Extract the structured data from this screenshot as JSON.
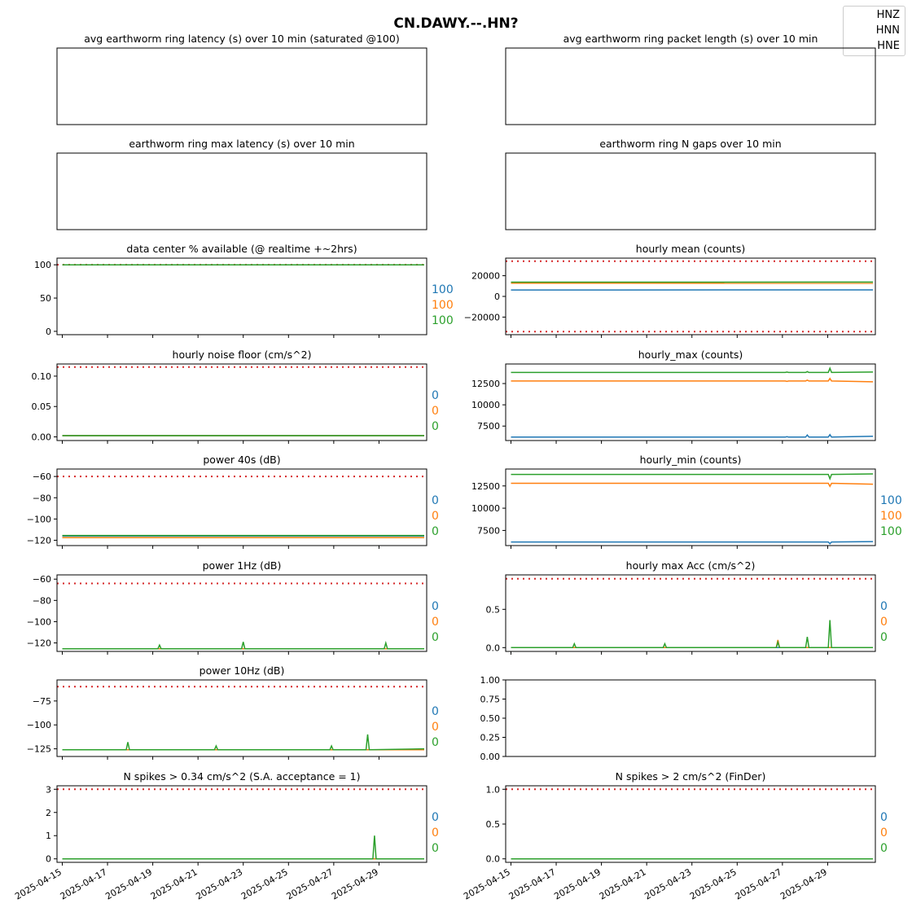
{
  "figure": {
    "title": "CN.DAWY.--.HN?",
    "legend": [
      "HNZ",
      "HNN",
      "HNE"
    ],
    "colors": {
      "HNZ": "#1f77b4",
      "HNN": "#ff7f0e",
      "HNE": "#2ca02c",
      "threshold": "#d62728"
    },
    "x_tick_labels": [
      "2025-04-15",
      "2025-04-17",
      "2025-04-19",
      "2025-04-21",
      "2025-04-23",
      "2025-04-25",
      "2025-04-27",
      "2025-04-29"
    ]
  },
  "chart_data": [
    {
      "type": "line",
      "title": "avg earthworm ring latency (s)   over 10 min (saturated @100)",
      "empty": true,
      "series": []
    },
    {
      "type": "line",
      "title": "avg earthworm ring packet length (s)   over 10 min",
      "empty": true,
      "series": []
    },
    {
      "type": "line",
      "title": "earthworm ring max latency (s)   over 10 min",
      "empty": true,
      "series": []
    },
    {
      "type": "line",
      "title": "earthworm ring N gaps   over 10 min",
      "empty": true,
      "series": []
    },
    {
      "type": "line",
      "title": "data center % available (@ realtime +~2hrs)",
      "x_range": [
        "2025-04-15",
        "2025-05-01"
      ],
      "ylim": [
        -5,
        110
      ],
      "yticks": [
        0,
        50,
        100
      ],
      "ytick_labels": [
        "0",
        "50",
        "100"
      ],
      "threshold": 100,
      "series": [
        {
          "name": "HNZ",
          "x": [
            "2025-04-15",
            "2025-05-01"
          ],
          "values": [
            100,
            100
          ]
        },
        {
          "name": "HNN",
          "x": [
            "2025-04-15",
            "2025-05-01"
          ],
          "values": [
            100,
            100
          ]
        },
        {
          "name": "HNE",
          "x": [
            "2025-04-15",
            "2025-05-01"
          ],
          "values": [
            100,
            100
          ]
        }
      ],
      "side_labels": [
        "100",
        "100",
        "100"
      ]
    },
    {
      "type": "line",
      "title": "hourly mean (counts)",
      "x_range": [
        "2025-04-15",
        "2025-05-01"
      ],
      "ylim": [
        -37000,
        37000
      ],
      "yticks": [
        -20000,
        0,
        20000
      ],
      "ytick_labels": [
        "−20000",
        "0",
        "20000"
      ],
      "threshold": [
        34000,
        -34000
      ],
      "series": [
        {
          "name": "HNZ",
          "x": [
            "2025-04-15",
            "2025-05-01"
          ],
          "values": [
            6200,
            6300
          ]
        },
        {
          "name": "HNN",
          "x": [
            "2025-04-15",
            "2025-05-01"
          ],
          "values": [
            12800,
            12700
          ]
        },
        {
          "name": "HNE",
          "x": [
            "2025-04-15",
            "2025-05-01"
          ],
          "values": [
            13800,
            13850
          ]
        }
      ]
    },
    {
      "type": "line",
      "title": "hourly noise floor (cm/s^2)",
      "x_range": [
        "2025-04-15",
        "2025-05-01"
      ],
      "ylim": [
        -0.006,
        0.12
      ],
      "yticks": [
        0.0,
        0.05,
        0.1
      ],
      "ytick_labels": [
        "0.00",
        "0.05",
        "0.10"
      ],
      "threshold": 0.115,
      "series": [
        {
          "name": "HNZ",
          "x": [
            "2025-04-15",
            "2025-05-01"
          ],
          "values": [
            0.002,
            0.002
          ]
        },
        {
          "name": "HNN",
          "x": [
            "2025-04-15",
            "2025-05-01"
          ],
          "values": [
            0.002,
            0.002
          ]
        },
        {
          "name": "HNE",
          "x": [
            "2025-04-15",
            "2025-05-01"
          ],
          "values": [
            0.002,
            0.002
          ]
        }
      ],
      "side_labels": [
        "0",
        "0",
        "0"
      ]
    },
    {
      "type": "line",
      "title": "hourly_max (counts)",
      "x_range": [
        "2025-04-15",
        "2025-05-01"
      ],
      "ylim": [
        5800,
        14800
      ],
      "yticks": [
        7500,
        10000,
        12500
      ],
      "ytick_labels": [
        "7500",
        "10000",
        "12500"
      ],
      "series": [
        {
          "name": "HNZ",
          "x": [
            "2025-04-15",
            "2025-04-27.2",
            "2025-04-28.1",
            "2025-04-29.1",
            "2025-05-01"
          ],
          "values": [
            6200,
            6250,
            6450,
            6500,
            6300
          ]
        },
        {
          "name": "HNN",
          "x": [
            "2025-04-15",
            "2025-04-27.2",
            "2025-04-28.1",
            "2025-04-29.1",
            "2025-05-01"
          ],
          "values": [
            12800,
            12750,
            12900,
            13100,
            12700
          ]
        },
        {
          "name": "HNE",
          "x": [
            "2025-04-15",
            "2025-04-27.2",
            "2025-04-28.1",
            "2025-04-29.1",
            "2025-05-01"
          ],
          "values": [
            13800,
            13850,
            13900,
            14300,
            13850
          ]
        }
      ]
    },
    {
      "type": "line",
      "title": "power 40s (dB)",
      "x_range": [
        "2025-04-15",
        "2025-05-01"
      ],
      "ylim": [
        -125,
        -53
      ],
      "yticks": [
        -120,
        -100,
        -80,
        -60
      ],
      "ytick_labels": [
        "−120",
        "−100",
        "−80",
        "−60"
      ],
      "threshold": -60,
      "series": [
        {
          "name": "HNZ",
          "x": [
            "2025-04-15",
            "2025-05-01"
          ],
          "values": [
            -116,
            -116
          ]
        },
        {
          "name": "HNN",
          "x": [
            "2025-04-15",
            "2025-05-01"
          ],
          "values": [
            -117.5,
            -117.5
          ]
        },
        {
          "name": "HNE",
          "x": [
            "2025-04-15",
            "2025-05-01"
          ],
          "values": [
            -115.5,
            -115.5
          ]
        }
      ],
      "side_labels": [
        "0",
        "0",
        "0"
      ]
    },
    {
      "type": "line",
      "title": "hourly_min (counts)",
      "x_range": [
        "2025-04-15",
        "2025-05-01"
      ],
      "ylim": [
        5800,
        14400
      ],
      "yticks": [
        7500,
        10000,
        12500
      ],
      "ytick_labels": [
        "7500",
        "10000",
        "12500"
      ],
      "series": [
        {
          "name": "HNZ",
          "x": [
            "2025-04-15",
            "2025-04-29.1",
            "2025-05-01"
          ],
          "values": [
            6200,
            6000,
            6250
          ]
        },
        {
          "name": "HNN",
          "x": [
            "2025-04-15",
            "2025-04-29.1",
            "2025-05-01"
          ],
          "values": [
            12800,
            12450,
            12700
          ]
        },
        {
          "name": "HNE",
          "x": [
            "2025-04-15",
            "2025-04-29.1",
            "2025-05-01"
          ],
          "values": [
            13800,
            13300,
            13850
          ]
        }
      ],
      "side_labels": [
        "100",
        "100",
        "100"
      ]
    },
    {
      "type": "line",
      "title": "power 1Hz (dB)",
      "x_range": [
        "2025-04-15",
        "2025-05-01"
      ],
      "ylim": [
        -128,
        -56
      ],
      "yticks": [
        -120,
        -100,
        -80,
        -60
      ],
      "ytick_labels": [
        "−120",
        "−100",
        "−80",
        "−60"
      ],
      "threshold": -64,
      "series": [
        {
          "name": "HNZ",
          "x": [
            "2025-04-15",
            "2025-05-01"
          ],
          "values": [
            -125.5,
            -125.5
          ]
        },
        {
          "name": "HNN",
          "x": [
            "2025-04-15",
            "2025-05-01"
          ],
          "values": [
            -125.5,
            -125.5
          ]
        },
        {
          "name": "HNE",
          "x": [
            "2025-04-15",
            "2025-04-19.3",
            "2025-04-23",
            "2025-04-29.3",
            "2025-05-01"
          ],
          "values": [
            -125.5,
            -122,
            -119,
            -120,
            -125.5
          ]
        }
      ],
      "side_labels": [
        "0",
        "0",
        "0"
      ]
    },
    {
      "type": "line",
      "title": "hourly max Acc (cm/s^2)",
      "x_range": [
        "2025-04-15",
        "2025-05-01"
      ],
      "ylim": [
        -0.05,
        0.95
      ],
      "yticks": [
        0.0,
        0.5
      ],
      "ytick_labels": [
        "0.0",
        "0.5"
      ],
      "threshold": 0.9,
      "series": [
        {
          "name": "HNZ",
          "x": [
            "2025-04-15",
            "2025-05-01"
          ],
          "values": [
            0.0,
            0.0
          ]
        },
        {
          "name": "HNN",
          "x": [
            "2025-04-15",
            "2025-04-26.8",
            "2025-05-01"
          ],
          "values": [
            0.0,
            0.1,
            0.0
          ]
        },
        {
          "name": "HNE",
          "x": [
            "2025-04-15",
            "2025-04-17.8",
            "2025-04-21.8",
            "2025-04-26.8",
            "2025-04-28.1",
            "2025-04-29.1",
            "2025-05-01"
          ],
          "values": [
            0.0,
            0.05,
            0.05,
            0.07,
            0.14,
            0.36,
            0.0
          ]
        }
      ],
      "side_labels": [
        "0",
        "0",
        "0"
      ]
    },
    {
      "type": "line",
      "title": "power 10Hz (dB)",
      "x_range": [
        "2025-04-15",
        "2025-05-01"
      ],
      "ylim": [
        -133,
        -53
      ],
      "yticks": [
        -125,
        -100,
        -75
      ],
      "ytick_labels": [
        "−125",
        "−100",
        "−75"
      ],
      "threshold": -60,
      "series": [
        {
          "name": "HNZ",
          "x": [
            "2025-04-15",
            "2025-05-01"
          ],
          "values": [
            -126,
            -126
          ]
        },
        {
          "name": "HNN",
          "x": [
            "2025-04-15",
            "2025-05-01"
          ],
          "values": [
            -126,
            -126
          ]
        },
        {
          "name": "HNE",
          "x": [
            "2025-04-15",
            "2025-04-17.9",
            "2025-04-21.8",
            "2025-04-26.9",
            "2025-04-28.5",
            "2025-05-01"
          ],
          "values": [
            -126,
            -118,
            -122,
            -122,
            -110,
            -125
          ]
        }
      ],
      "side_labels": [
        "0",
        "0",
        "0"
      ]
    },
    {
      "type": "line",
      "title": "",
      "ylim": [
        0,
        1
      ],
      "yticks": [
        0.0,
        0.25,
        0.5,
        0.75,
        1.0
      ],
      "ytick_labels": [
        "0.00",
        "0.25",
        "0.50",
        "0.75",
        "1.00"
      ],
      "series": []
    },
    {
      "type": "line",
      "title": "N spikes > 0.34 cm/s^2 (S.A. acceptance = 1)",
      "x_range": [
        "2025-04-15",
        "2025-05-01"
      ],
      "ylim": [
        -0.15,
        3.15
      ],
      "yticks": [
        0,
        1,
        2,
        3
      ],
      "ytick_labels": [
        "0",
        "1",
        "2",
        "3"
      ],
      "threshold": 3,
      "series": [
        {
          "name": "HNZ",
          "x": [
            "2025-04-15",
            "2025-05-01"
          ],
          "values": [
            0,
            0
          ]
        },
        {
          "name": "HNN",
          "x": [
            "2025-04-15",
            "2025-05-01"
          ],
          "values": [
            0,
            0
          ]
        },
        {
          "name": "HNE",
          "x": [
            "2025-04-15",
            "2025-04-28.8",
            "2025-05-01"
          ],
          "values": [
            0,
            1,
            0
          ]
        }
      ],
      "side_labels": [
        "0",
        "0",
        "0"
      ]
    },
    {
      "type": "line",
      "title": "N spikes > 2 cm/s^2 (FinDer)",
      "x_range": [
        "2025-04-15",
        "2025-05-01"
      ],
      "ylim": [
        -0.05,
        1.05
      ],
      "yticks": [
        0.0,
        0.5,
        1.0
      ],
      "ytick_labels": [
        "0.0",
        "0.5",
        "1.0"
      ],
      "threshold": 1,
      "series": [
        {
          "name": "HNZ",
          "x": [
            "2025-04-15",
            "2025-05-01"
          ],
          "values": [
            0,
            0
          ]
        },
        {
          "name": "HNN",
          "x": [
            "2025-04-15",
            "2025-05-01"
          ],
          "values": [
            0,
            0
          ]
        },
        {
          "name": "HNE",
          "x": [
            "2025-04-15",
            "2025-05-01"
          ],
          "values": [
            0,
            0
          ]
        }
      ],
      "side_labels": [
        "0",
        "0",
        "0"
      ]
    }
  ]
}
